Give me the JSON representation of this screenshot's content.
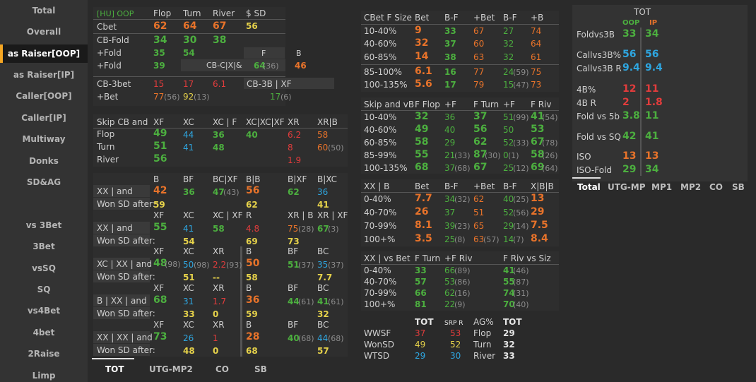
{
  "nav": [
    "Total",
    "Overall",
    "as Raiser[OOP]",
    "as Raiser[IP]",
    "Caller[OOP]",
    "Caller[IP]",
    "Multiway",
    "Donks",
    "SD&AG",
    "vs 3Bet",
    "3Bet",
    "vsSQ",
    "SQ",
    "vs4Bet",
    "4bet",
    "2Raise",
    "Limp"
  ],
  "t1": {
    "title": "[HU] OOP",
    "flop": "Flop",
    "turn": "Turn",
    "river": "River",
    "sd": "$ SD",
    "cbet": "Cbet",
    "cbet_v": [
      "62",
      "64",
      "67",
      "56"
    ],
    "cbfold": "CB-Fold",
    "cbfold_v": [
      "34",
      "30",
      "38"
    ],
    "pfold": "+Fold",
    "pfold_v": [
      "35",
      "54"
    ],
    "f": "F",
    "b": "B",
    "pfold2": "+Fold",
    "pfold2_v": [
      "39"
    ],
    "cbcx": "CB-C|X|&",
    "cbcx_v": [
      "64",
      "(36)",
      "46"
    ],
    "cb3bet": "CB-3bet",
    "cb3bet_v": [
      "15",
      "17",
      "6.1"
    ],
    "cb3bxf": "CB-3B | XF",
    "pbet": "+Bet",
    "pbet_v": [
      "77",
      "(56)",
      "92",
      "(13)"
    ],
    "cb3bxf_v": [
      "17",
      "(6)"
    ]
  },
  "t2": {
    "label": [
      "Skip CB and",
      "Flop",
      "Turn",
      "River"
    ],
    "heads": [
      "XF",
      "XC",
      "XC | F",
      "XC|XC|XF",
      "XR",
      "XR|B"
    ],
    "flop": [
      "49",
      "44",
      "36",
      "40",
      "6.2",
      "58"
    ],
    "turn": [
      "51",
      "41",
      "48",
      "8",
      "60",
      "(50)"
    ],
    "river": [
      "56",
      "1.9"
    ]
  },
  "t3": {
    "heads": [
      "B",
      "BF",
      "BC|XF",
      "B|B",
      "B|XF",
      "B|XC"
    ],
    "r1": [
      "XX | and",
      "Won SD after:"
    ],
    "v1": [
      "42",
      "36",
      "47",
      "(43)",
      "56",
      "62",
      "36"
    ],
    "sd1": [
      "59",
      "62",
      "41"
    ]
  },
  "t4": {
    "heads": [
      "XF",
      "XC",
      "XC | XF",
      "R",
      "XR | B",
      "XR | XF"
    ],
    "r1": [
      "XX | and",
      "Won SD after:"
    ],
    "v1": [
      "55",
      "41",
      "58",
      "4.8",
      "75",
      "(28)",
      "67",
      "(3)"
    ],
    "sd1": [
      "54",
      "69",
      "73"
    ]
  },
  "t5": {
    "heads": [
      "XF",
      "XC",
      "XR",
      "B",
      "BF",
      "BC"
    ],
    "r1": [
      "XC | XX | and",
      "Won SD after:"
    ],
    "v1": [
      "48",
      "(98)",
      "50",
      "(98)",
      "2.2",
      "(93)",
      "50",
      "51",
      "(37)",
      "35",
      "(37)"
    ],
    "sd1": [
      "51",
      "--",
      "58",
      "7.7"
    ]
  },
  "t6": {
    "heads": [
      "XF",
      "XC",
      "XR",
      "B",
      "BF",
      "BC"
    ],
    "r1": [
      "B | XX | and",
      "Won SD after:"
    ],
    "v1": [
      "68",
      "31",
      "1.7",
      "36",
      "44",
      "(61)",
      "41",
      "(61)"
    ],
    "sd1": [
      "33",
      "0",
      "59",
      "32"
    ]
  },
  "t7": {
    "heads": [
      "XF",
      "XC",
      "XR",
      "B",
      "BF",
      "BC"
    ],
    "r1": [
      "XX | XX | and",
      "Won SD after:"
    ],
    "v1": [
      "73",
      "26",
      "1",
      "28",
      "40",
      "(68)",
      "44",
      "(68)"
    ],
    "sd1": [
      "48",
      "0",
      "68",
      "57"
    ]
  },
  "bottom_tabs": [
    "TOT",
    "UTG-MP2",
    "CO",
    "SB"
  ],
  "cbsize": {
    "heads": [
      "CBet F Size",
      "Bet",
      "B-F",
      "+Bet",
      "B-F",
      "+B"
    ],
    "rows": [
      [
        "10-40%",
        "9",
        "33",
        "67",
        "27",
        "74"
      ],
      [
        "40-60%",
        "32",
        "37",
        "60",
        "32",
        "64"
      ],
      [
        "60-85%",
        "14",
        "38",
        "63",
        "32",
        "61"
      ],
      [
        "85-100%",
        "6.1",
        "16",
        "77",
        "24",
        "(59)",
        "75"
      ],
      [
        "100-135%",
        "5.6",
        "17",
        "79",
        "15",
        "(47)",
        "73"
      ]
    ]
  },
  "skipvb": {
    "heads": [
      "Skip and vB",
      "F Flop",
      "+F",
      "F Turn",
      "+F",
      "F Riv"
    ],
    "rows": [
      [
        "10-40%",
        "32",
        "36",
        "37",
        "51",
        "(99)",
        "41",
        "(54)"
      ],
      [
        "40-60%",
        "49",
        "40",
        "56",
        "50",
        "53"
      ],
      [
        "60-85%",
        "58",
        "29",
        "62",
        "52",
        "(33)",
        "67",
        "(78)"
      ],
      [
        "85-99%",
        "55",
        "21",
        "(33)",
        "87",
        "(30)",
        "0",
        "(1)",
        "58",
        "(26)"
      ],
      [
        "100-135%",
        "68",
        "37",
        "(68)",
        "67",
        "25",
        "(12)",
        "69",
        "(64)"
      ]
    ]
  },
  "xxb": {
    "heads": [
      "XX | B",
      "Bet",
      "B-F",
      "+Bet",
      "B-F",
      "X|B|B"
    ],
    "rows": [
      [
        "0-40%",
        "7.7",
        "34",
        "(32)",
        "62",
        "40",
        "(25)",
        "13"
      ],
      [
        "40-70%",
        "26",
        "37",
        "51",
        "52",
        "(56)",
        "29"
      ],
      [
        "70-99%",
        "8.1",
        "39",
        "(23)",
        "65",
        "29",
        "(14)",
        "7.5"
      ],
      [
        "100+%",
        "3.5",
        "25",
        "(8)",
        "63",
        "(57)",
        "14",
        "(7)",
        "8.4"
      ]
    ]
  },
  "xxvb": {
    "heads": [
      "XX | vs Bet",
      "F Turn",
      "+F Riv",
      "F Riv vs Siz"
    ],
    "rows": [
      [
        "0-40%",
        "33",
        "66",
        "(89)",
        "41",
        "(46)"
      ],
      [
        "40-70%",
        "57",
        "53",
        "(86)",
        "55",
        "(87)"
      ],
      [
        "70-99%",
        "66",
        "62",
        "(16)",
        "74",
        "(31)"
      ],
      [
        "100+%",
        "81",
        "22",
        "(9)",
        "70",
        "(40)"
      ]
    ]
  },
  "sd": {
    "tot": "TOT",
    "srpr": "SRP R",
    "ag": "AG%",
    "tot2": "TOT",
    "rows": [
      [
        "WWSF",
        "37",
        "53",
        "Flop",
        "29"
      ],
      [
        "WonSD",
        "49",
        "52",
        "Turn",
        "32"
      ],
      [
        "WTSD",
        "29",
        "30",
        "River",
        "33"
      ]
    ]
  },
  "right": {
    "tot": "TOT",
    "oop": "OOP",
    "ip": "IP",
    "rows": [
      [
        "Foldvs3B",
        "33",
        "34"
      ],
      [
        "Callvs3B%",
        "56",
        "56"
      ],
      [
        "Callvs3B R",
        "9.4",
        "9.4"
      ],
      [
        "4B%",
        "12",
        "11"
      ],
      [
        "4B R",
        "2",
        "1.8"
      ],
      [
        "Fold vs 5b",
        "3.8",
        "11"
      ],
      [
        "Fold vs SQ",
        "42",
        "41"
      ],
      [
        "ISO",
        "13",
        "13"
      ],
      [
        "ISO-Fold",
        "29",
        "34"
      ]
    ],
    "tabs": [
      "Total",
      "UTG-MP",
      "MP1",
      "MP2",
      "CO",
      "SB"
    ]
  },
  "colors": {
    "green": "#4caf3f",
    "orange": "#e8732a",
    "yellow": "#e6d24a",
    "red": "#e23c3c",
    "blue": "#2ea6e0",
    "accent": "#f5a623"
  }
}
